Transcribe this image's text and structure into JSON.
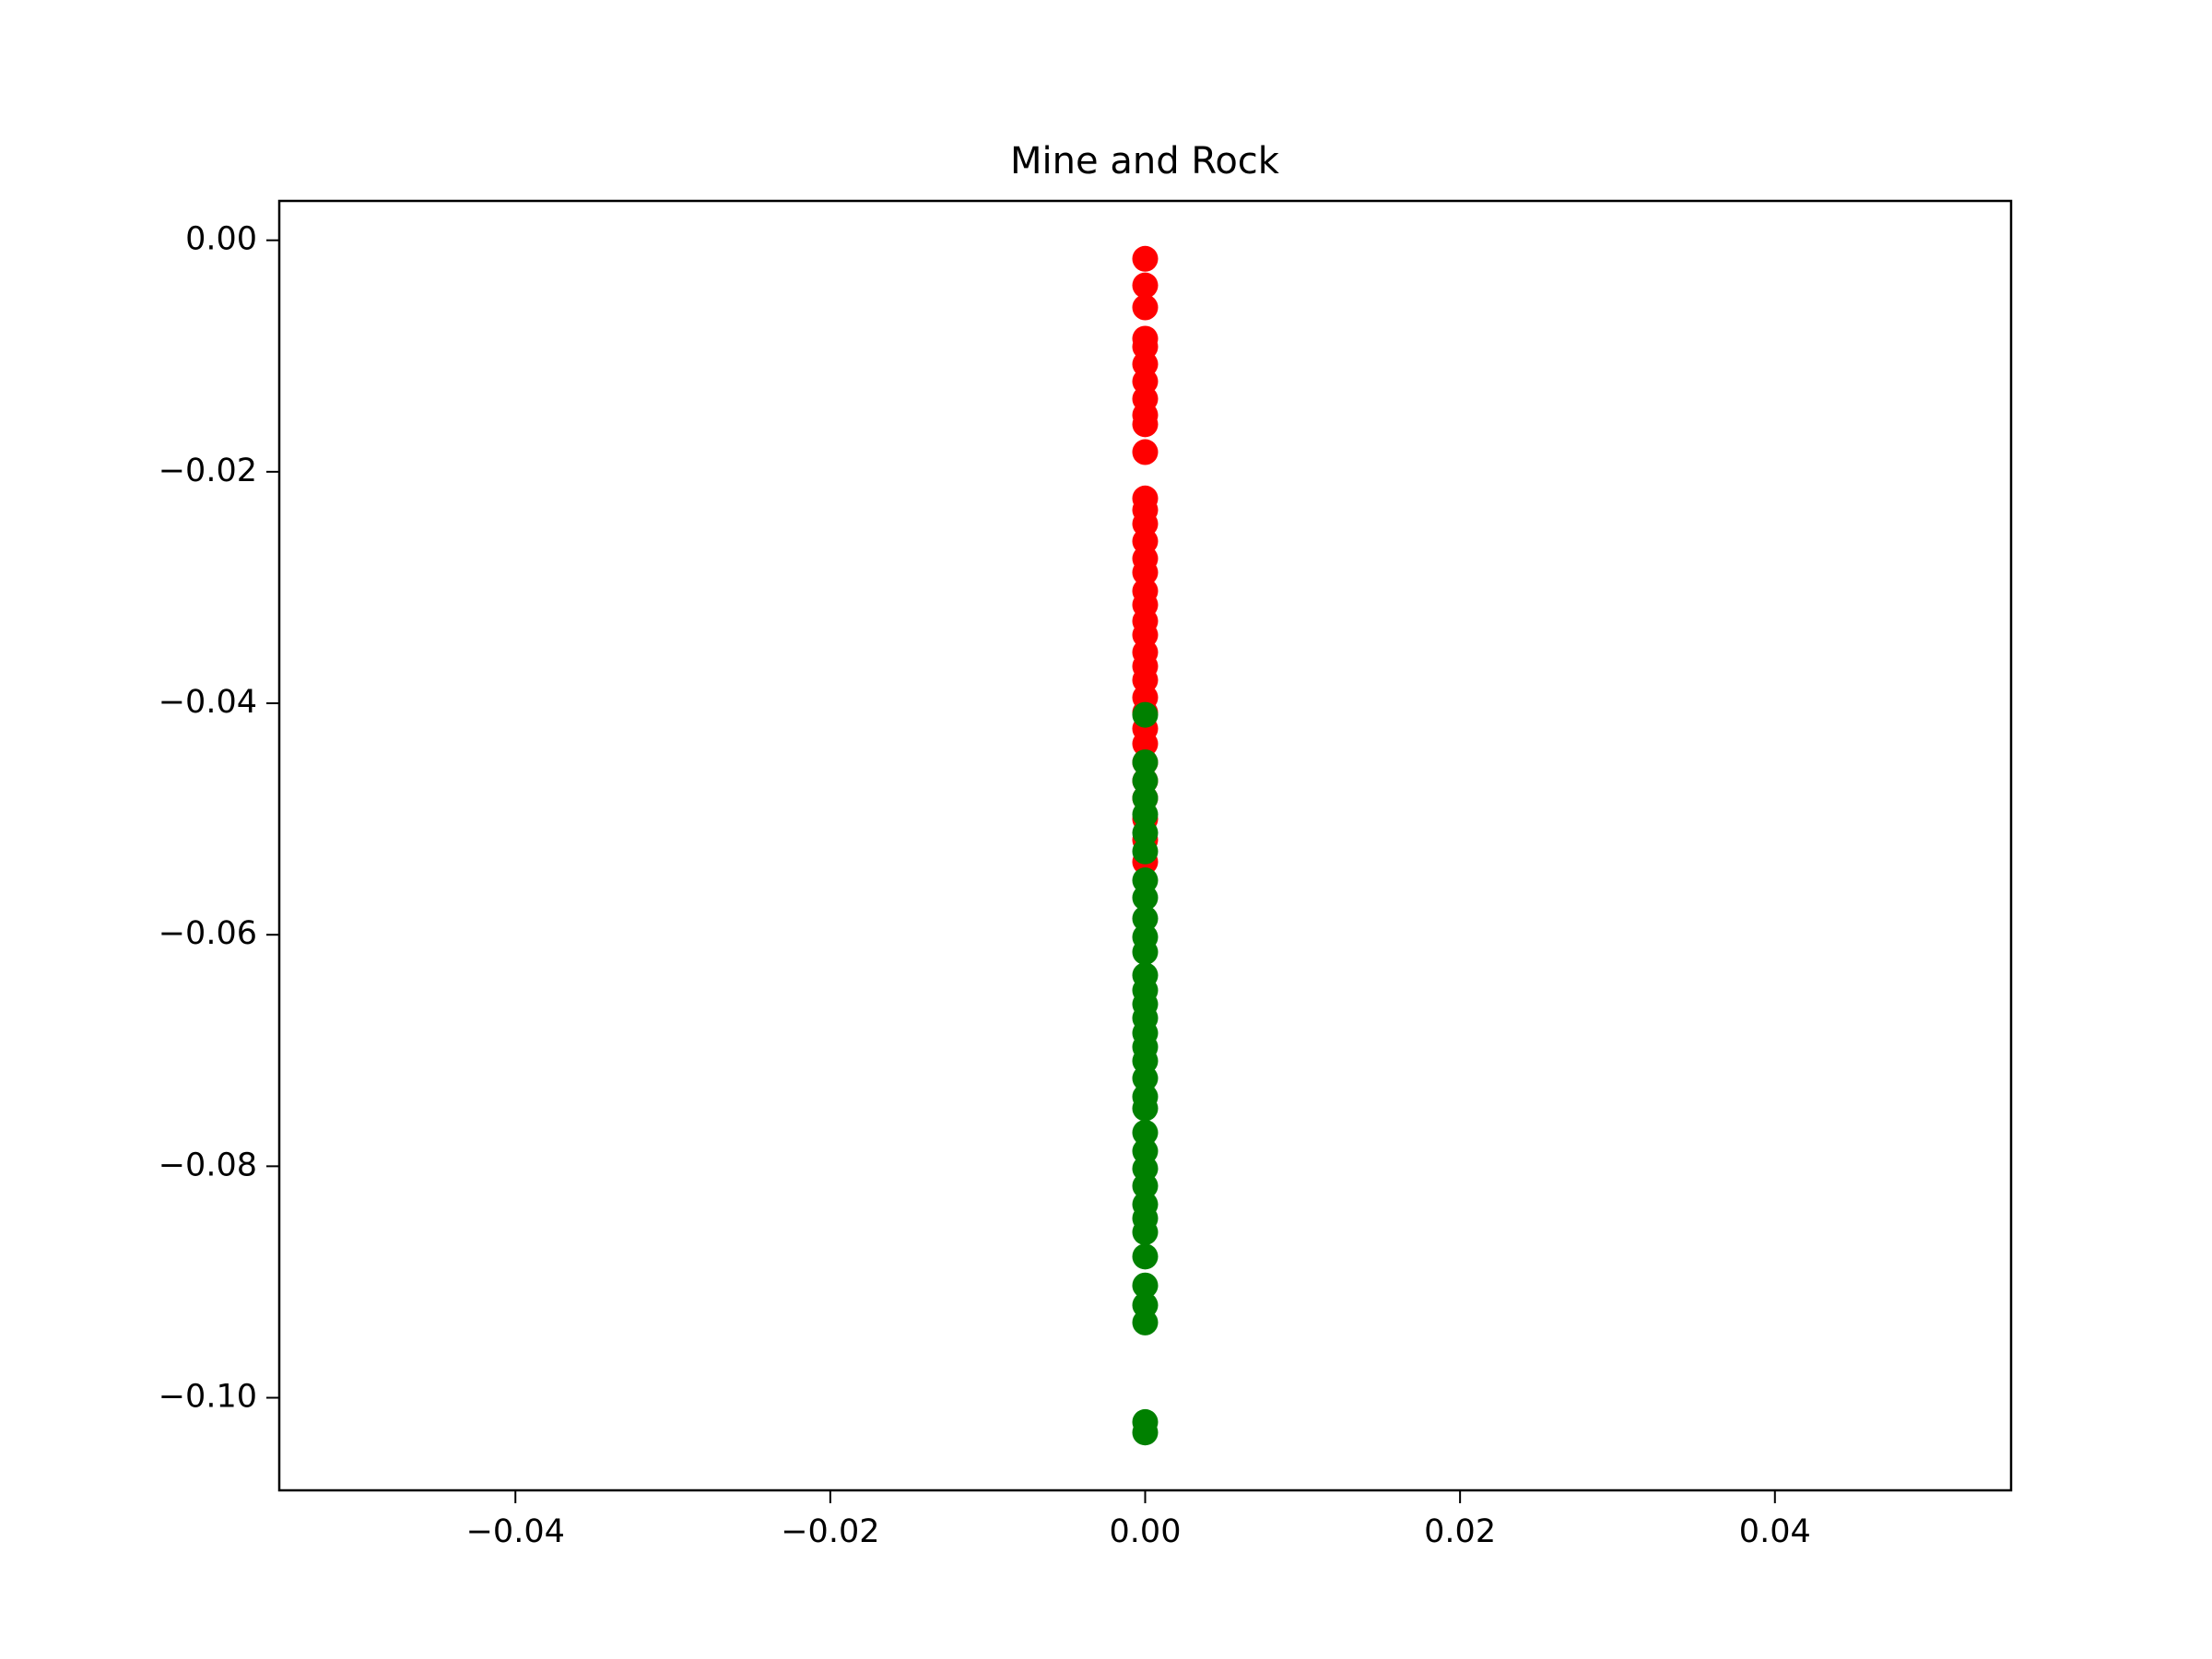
{
  "chart_data": {
    "type": "scatter",
    "title": "Mine and Rock",
    "series": [
      {
        "color": "#ff0000",
        "x": [
          0,
          0,
          0,
          0,
          0,
          0,
          0,
          0,
          0,
          0,
          0,
          0,
          0,
          0,
          0,
          0,
          0,
          0,
          0,
          0,
          0,
          0,
          0,
          0,
          0,
          0,
          0,
          0,
          0,
          0,
          0,
          0,
          0,
          0
        ],
        "values": [
          -0.0016,
          -0.0039,
          -0.0058,
          -0.0085,
          -0.0092,
          -0.0107,
          -0.0122,
          -0.0137,
          -0.0151,
          -0.0159,
          -0.0183,
          -0.0223,
          -0.0233,
          -0.0245,
          -0.026,
          -0.0275,
          -0.0287,
          -0.0303,
          -0.0315,
          -0.0329,
          -0.0341,
          -0.0356,
          -0.0368,
          -0.038,
          -0.0395,
          -0.0408,
          -0.0422,
          -0.0435,
          -0.0451,
          -0.0467,
          -0.0482,
          -0.05,
          -0.0518,
          -0.0537
        ]
      },
      {
        "color": "#008000",
        "x": [
          0,
          0,
          0,
          0,
          0,
          0,
          0,
          0,
          0,
          0,
          0,
          0,
          0,
          0,
          0,
          0,
          0,
          0,
          0,
          0,
          0,
          0,
          0,
          0,
          0,
          0,
          0,
          0,
          0,
          0,
          0,
          0,
          0,
          0,
          0
        ],
        "values": [
          -0.041,
          -0.0451,
          -0.0467,
          -0.0482,
          -0.0496,
          -0.0512,
          -0.0528,
          -0.0553,
          -0.0568,
          -0.0586,
          -0.0602,
          -0.0615,
          -0.0635,
          -0.0648,
          -0.066,
          -0.0672,
          -0.0685,
          -0.0697,
          -0.0709,
          -0.0724,
          -0.074,
          -0.075,
          -0.0771,
          -0.0787,
          -0.0802,
          -0.0817,
          -0.0833,
          -0.0845,
          -0.0857,
          -0.0878,
          -0.0903,
          -0.092,
          -0.0935,
          -0.1021,
          -0.103
        ]
      }
    ],
    "xlim": [
      -0.055,
      0.055
    ],
    "ylim": [
      -0.108,
      0.0034
    ],
    "xticks": [
      {
        "value": -0.04,
        "label": "−0.04"
      },
      {
        "value": -0.02,
        "label": "−0.02"
      },
      {
        "value": 0,
        "label": "0.00"
      },
      {
        "value": 0.02,
        "label": "0.02"
      },
      {
        "value": 0.04,
        "label": "0.04"
      }
    ],
    "yticks": [
      {
        "value": 0,
        "label": "0.00"
      },
      {
        "value": -0.02,
        "label": "−0.02"
      },
      {
        "value": -0.04,
        "label": "−0.04"
      },
      {
        "value": -0.06,
        "label": "−0.06"
      },
      {
        "value": -0.08,
        "label": "−0.08"
      },
      {
        "value": -0.1,
        "label": "−0.10"
      }
    ],
    "grid": false
  }
}
